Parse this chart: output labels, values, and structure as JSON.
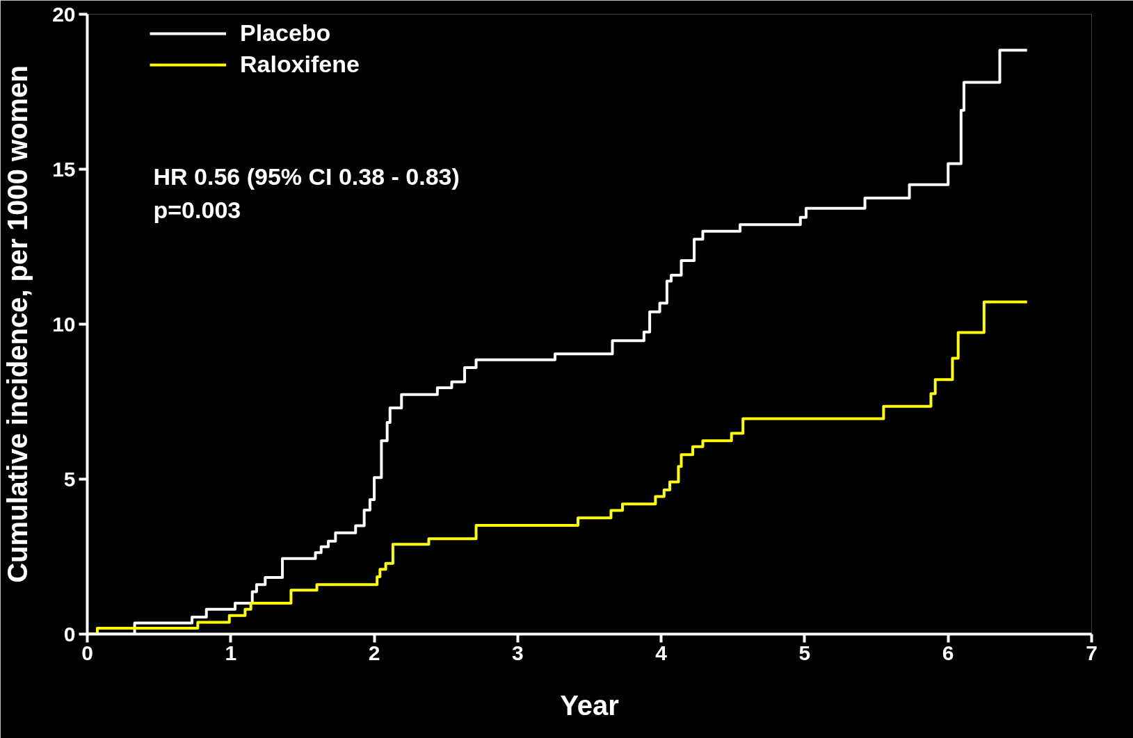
{
  "chart_data": {
    "type": "step",
    "xlabel": "Year",
    "ylabel": "Cumulative incidence, per 1000 women",
    "xlim": [
      0,
      7
    ],
    "ylim": [
      0,
      20
    ],
    "xticks": [
      0,
      1,
      2,
      3,
      4,
      5,
      6,
      7
    ],
    "yticks": [
      0,
      5,
      10,
      15,
      20
    ],
    "grid": false,
    "legend": "top left",
    "line_style": "solid",
    "marker": "none",
    "annotations": [
      "HR 0.56 (95% CI 0.38 - 0.83)",
      "p=0.003"
    ],
    "series": [
      {
        "name": "Placebo",
        "color": "#ffffff",
        "x": [
          0,
          0.33,
          0.73,
          0.83,
          1.03,
          1.15,
          1.18,
          1.24,
          1.36,
          1.59,
          1.63,
          1.68,
          1.73,
          1.87,
          1.93,
          1.97,
          2.0,
          2.05,
          2.09,
          2.11,
          2.19,
          2.44,
          2.54,
          2.63,
          2.71,
          3.26,
          3.66,
          3.88,
          3.92,
          3.99,
          4.04,
          4.07,
          4.14,
          4.23,
          4.29,
          4.55,
          4.97,
          5.01,
          5.42,
          5.73,
          6.0,
          6.09,
          6.11,
          6.36,
          6.55
        ],
        "values": [
          0,
          0.36,
          0.55,
          0.8,
          1.0,
          1.37,
          1.6,
          1.83,
          2.44,
          2.63,
          2.82,
          3.0,
          3.27,
          3.5,
          4.0,
          4.34,
          5.05,
          6.24,
          6.83,
          7.3,
          7.73,
          7.95,
          8.14,
          8.6,
          8.85,
          9.04,
          9.47,
          9.75,
          10.4,
          10.68,
          11.39,
          11.58,
          12.05,
          12.74,
          13.0,
          13.21,
          13.45,
          13.74,
          14.07,
          14.5,
          15.18,
          16.9,
          17.8,
          18.84,
          18.84
        ]
      },
      {
        "name": "Raloxifene",
        "color": "#ffff00",
        "x": [
          0,
          0.07,
          0.77,
          0.99,
          1.1,
          1.14,
          1.42,
          1.6,
          2.02,
          2.04,
          2.08,
          2.13,
          2.38,
          2.71,
          3.42,
          3.65,
          3.73,
          3.96,
          4.02,
          4.06,
          4.12,
          4.14,
          4.22,
          4.29,
          4.49,
          4.57,
          5.55,
          5.88,
          5.91,
          6.03,
          6.07,
          6.25,
          6.55
        ],
        "values": [
          0,
          0.19,
          0.38,
          0.6,
          0.8,
          1.0,
          1.42,
          1.6,
          1.85,
          2.09,
          2.28,
          2.9,
          3.08,
          3.51,
          3.75,
          3.99,
          4.2,
          4.44,
          4.65,
          4.91,
          5.41,
          5.79,
          6.05,
          6.24,
          6.48,
          6.95,
          7.35,
          7.76,
          8.21,
          8.9,
          9.73,
          10.72,
          10.72
        ]
      }
    ]
  }
}
